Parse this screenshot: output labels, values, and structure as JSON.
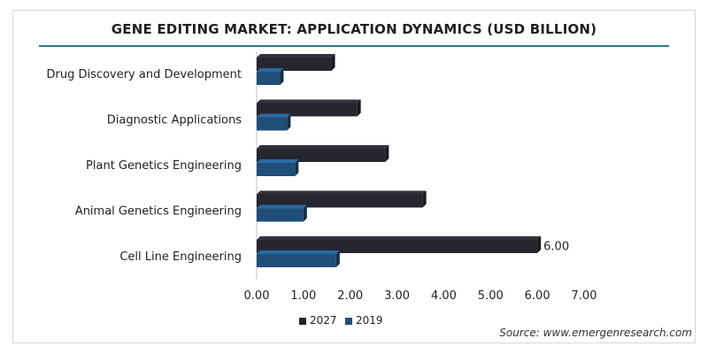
{
  "chart_data": {
    "type": "bar",
    "orientation": "horizontal",
    "title": "GENE EDITING MARKET: APPLICATION DYNAMICS (USD BILLION)",
    "categories": [
      "Drug Discovery and Development",
      "Diagnostic Applications",
      "Plant Genetics Engineering",
      "Animal Genetics Engineering",
      "Cell Line Engineering"
    ],
    "series": [
      {
        "name": "2027",
        "color": "#26262f",
        "values": [
          1.6,
          2.15,
          2.75,
          3.55,
          6.0
        ]
      },
      {
        "name": "2019",
        "color": "#1f4e79",
        "values": [
          0.5,
          0.65,
          0.82,
          1.0,
          1.7
        ]
      }
    ],
    "xlim": [
      0,
      7
    ],
    "xticks": [
      "0.00",
      "1.00",
      "2.00",
      "3.00",
      "4.00",
      "5.00",
      "6.00",
      "7.00"
    ],
    "data_labels": [
      {
        "series": "2027",
        "category": "Cell Line Engineering",
        "text": "6.00"
      }
    ],
    "legend": "bottom"
  },
  "source": "Source: www.emergenresearch.com"
}
